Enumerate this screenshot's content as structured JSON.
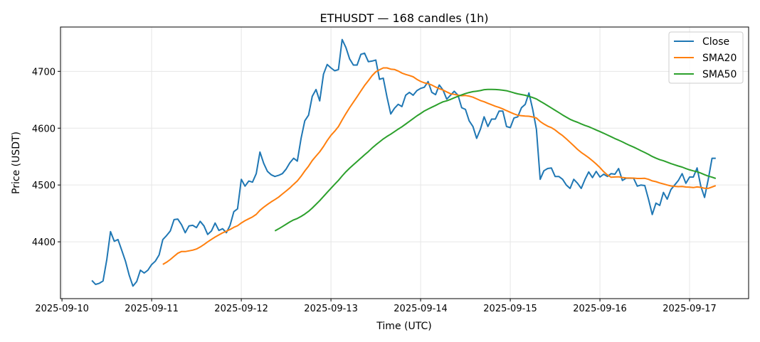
{
  "chart_data": {
    "type": "line",
    "title": "ETHUSDT — 168 candles (1h)",
    "xlabel": "Time (UTC)",
    "ylabel": "Price (USDT)",
    "start_time": "2025-09-10 08:00",
    "interval_hours": 1,
    "x_ticks": [
      "2025-09-10",
      "2025-09-11",
      "2025-09-12",
      "2025-09-13",
      "2025-09-14",
      "2025-09-15",
      "2025-09-16",
      "2025-09-17"
    ],
    "y_ticks": [
      4400,
      4500,
      4600,
      4700
    ],
    "xlim_hours_from_first_tick": [
      -0.4,
      183.8
    ],
    "ylim": [
      4300,
      4778
    ],
    "grid": true,
    "legend_position": "top-right",
    "series": [
      {
        "name": "Close",
        "color": "#1f77b4",
        "window": 1
      },
      {
        "name": "SMA20",
        "color": "#ff7f0e",
        "window": 20
      },
      {
        "name": "SMA50",
        "color": "#2ca02c",
        "window": 50
      }
    ],
    "close": [
      4332,
      4325,
      4327,
      4331,
      4369,
      4418,
      4401,
      4404,
      4385,
      4366,
      4341,
      4322,
      4330,
      4350,
      4345,
      4350,
      4360,
      4366,
      4377,
      4404,
      4411,
      4419,
      4439,
      4440,
      4430,
      4416,
      4428,
      4429,
      4425,
      4436,
      4428,
      4413,
      4419,
      4433,
      4420,
      4423,
      4416,
      4429,
      4453,
      4458,
      4510,
      4498,
      4507,
      4505,
      4520,
      4558,
      4538,
      4524,
      4518,
      4515,
      4517,
      4520,
      4528,
      4539,
      4547,
      4542,
      4582,
      4613,
      4623,
      4656,
      4668,
      4648,
      4695,
      4712,
      4706,
      4701,
      4703,
      4756,
      4742,
      4722,
      4711,
      4711,
      4730,
      4732,
      4717,
      4718,
      4720,
      4686,
      4688,
      4655,
      4625,
      4635,
      4642,
      4638,
      4658,
      4663,
      4658,
      4666,
      4670,
      4672,
      4682,
      4663,
      4659,
      4676,
      4667,
      4651,
      4658,
      4665,
      4658,
      4636,
      4633,
      4613,
      4603,
      4582,
      4598,
      4620,
      4603,
      4616,
      4616,
      4630,
      4630,
      4603,
      4601,
      4618,
      4620,
      4636,
      4642,
      4662,
      4633,
      4598,
      4510,
      4525,
      4529,
      4530,
      4515,
      4515,
      4510,
      4500,
      4494,
      4510,
      4503,
      4494,
      4510,
      4523,
      4513,
      4524,
      4514,
      4519,
      4515,
      4520,
      4519,
      4529,
      4508,
      4512,
      4512,
      4512,
      4498,
      4500,
      4499,
      4475,
      4448,
      4468,
      4464,
      4487,
      4475,
      4492,
      4500,
      4508,
      4520,
      4503,
      4514,
      4514,
      4530,
      4498,
      4478,
      4510,
      4547,
      4547
    ]
  }
}
